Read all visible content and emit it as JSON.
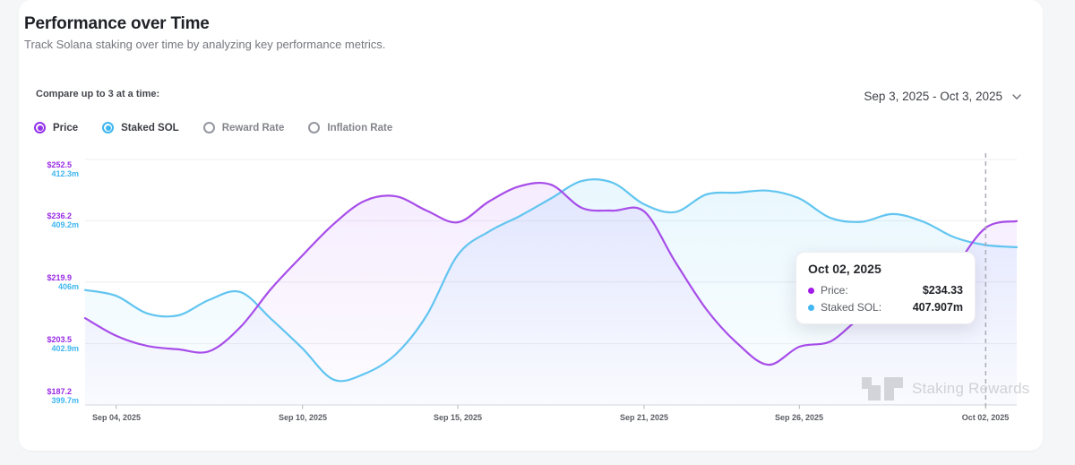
{
  "page": {
    "background": "#f5f6f7",
    "card_background": "#ffffff"
  },
  "header": {
    "title": "Performance over Time",
    "subtitle": "Track Solana staking over time by analyzing key performance metrics."
  },
  "controls": {
    "compare_label": "Compare up to 3 at a time:",
    "metrics": [
      {
        "label": "Price",
        "selected": true,
        "color": "#9333ea"
      },
      {
        "label": "Staked SOL",
        "selected": true,
        "color": "#3eb7f0"
      },
      {
        "label": "Reward Rate",
        "selected": false,
        "color": "#95979f"
      },
      {
        "label": "Inflation Rate",
        "selected": false,
        "color": "#95979f"
      }
    ],
    "date_range": "Sep 3, 2025 - Oct 3, 2025",
    "chevron_icon": "chevron-down"
  },
  "tooltip": {
    "title": "Oct 02, 2025",
    "rows": [
      {
        "label": "Price:",
        "value": "$234.33",
        "color": "#a21ce8"
      },
      {
        "label": "Staked SOL:",
        "value": "407.907m",
        "color": "#43b7f1"
      }
    ]
  },
  "watermark": {
    "text": "Staking Rewards"
  },
  "chart_data": {
    "type": "line",
    "title": "Performance over Time",
    "grid": true,
    "legend_position": "none",
    "x": [
      "2025-09-03",
      "2025-09-04",
      "2025-09-05",
      "2025-09-06",
      "2025-09-07",
      "2025-09-08",
      "2025-09-09",
      "2025-09-10",
      "2025-09-11",
      "2025-09-12",
      "2025-09-13",
      "2025-09-14",
      "2025-09-15",
      "2025-09-16",
      "2025-09-17",
      "2025-09-18",
      "2025-09-19",
      "2025-09-20",
      "2025-09-21",
      "2025-09-22",
      "2025-09-23",
      "2025-09-24",
      "2025-09-25",
      "2025-09-26",
      "2025-09-27",
      "2025-09-28",
      "2025-09-29",
      "2025-09-30",
      "2025-10-01",
      "2025-10-02",
      "2025-10-03"
    ],
    "series": [
      {
        "name": "Price",
        "axis": "left",
        "color": "#a74de9",
        "fill_color": "#a855f7",
        "values": [
          210.3,
          205.6,
          202.9,
          202.0,
          201.5,
          207.9,
          218.2,
          227.0,
          235.3,
          241.5,
          242.7,
          238.9,
          235.8,
          241.3,
          245.4,
          245.8,
          239.6,
          238.9,
          238.7,
          225.3,
          212.7,
          203.6,
          197.9,
          202.7,
          204.1,
          210.3,
          211.0,
          210.3,
          223.4,
          234.33,
          236.1
        ]
      },
      {
        "name": "Staked SOL",
        "axis": "right",
        "color": "#61c5f0",
        "fill_color": "#38bdf8",
        "values": [
          405.6,
          405.3,
          404.4,
          404.3,
          405.1,
          405.5,
          404.1,
          402.6,
          401.0,
          401.3,
          402.3,
          404.3,
          407.4,
          408.6,
          409.4,
          410.3,
          411.2,
          411.1,
          410.0,
          409.6,
          410.5,
          410.6,
          410.7,
          410.3,
          409.3,
          409.1,
          409.5,
          409.1,
          408.3,
          407.907,
          407.8
        ]
      }
    ],
    "left_axis": {
      "label": "Price",
      "color": "#9a2be6",
      "ticks": [
        "$252.5",
        "$236.2",
        "$219.9",
        "$203.5",
        "$187.2"
      ],
      "values": [
        252.5,
        236.2,
        219.9,
        203.5,
        187.2
      ],
      "range": [
        187.2,
        252.5
      ]
    },
    "right_axis": {
      "label": "Staked SOL",
      "color": "#3fb6f0",
      "ticks": [
        "412.3m",
        "409.2m",
        "406m",
        "402.9m",
        "399.7m"
      ],
      "values": [
        412.3,
        409.2,
        406.0,
        402.9,
        399.7
      ],
      "range": [
        399.7,
        412.3
      ]
    },
    "x_ticks": [
      {
        "index": 1,
        "label": "Sep 04, 2025"
      },
      {
        "index": 7,
        "label": "Sep 10, 2025"
      },
      {
        "index": 12,
        "label": "Sep 15, 2025"
      },
      {
        "index": 18,
        "label": "Sep 21, 2025"
      },
      {
        "index": 23,
        "label": "Sep 26, 2025"
      },
      {
        "index": 29,
        "label": "Oct 02, 2025"
      }
    ],
    "hover_index": 29
  }
}
